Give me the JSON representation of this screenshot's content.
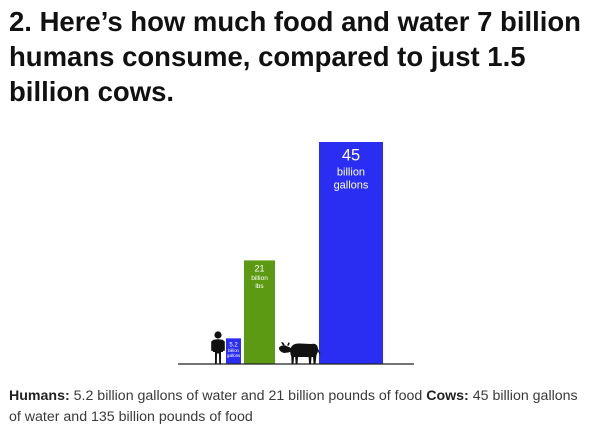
{
  "article": {
    "title": "2. Here’s how much food and water 7 billion humans consume, compared to just 1.5 billion cows."
  },
  "caption": {
    "humans_label": "Humans:",
    "humans_text": " 5.2 billion gallons of water and 21 billion pounds of food ",
    "cows_label": "Cows:",
    "cows_text": " 45 billion gallons of water and 135 billion pounds of food"
  },
  "icons": {
    "human": "human-silhouette-icon",
    "cow": "cow-silhouette-icon"
  },
  "colors": {
    "water": "#2a2ef2",
    "food": "#5d9a14",
    "baseline": "#222222"
  },
  "chart_data": {
    "type": "bar",
    "title": "",
    "xlabel": "",
    "ylabel": "",
    "ylim": [
      0,
      45
    ],
    "bars": [
      {
        "group": "humans",
        "metric": "water",
        "value": 5.2,
        "number_label": "5.2",
        "unit_lines": [
          "billion",
          "gallons"
        ],
        "color": "#2a2ef2"
      },
      {
        "group": "humans",
        "metric": "food",
        "value": 21,
        "number_label": "21",
        "unit_lines": [
          "billion",
          "lbs"
        ],
        "color": "#5d9a14"
      },
      {
        "group": "cows",
        "metric": "water",
        "value": 45,
        "number_label": "45",
        "unit_lines": [
          "billion",
          "gallons"
        ],
        "color": "#2a2ef2"
      }
    ]
  }
}
